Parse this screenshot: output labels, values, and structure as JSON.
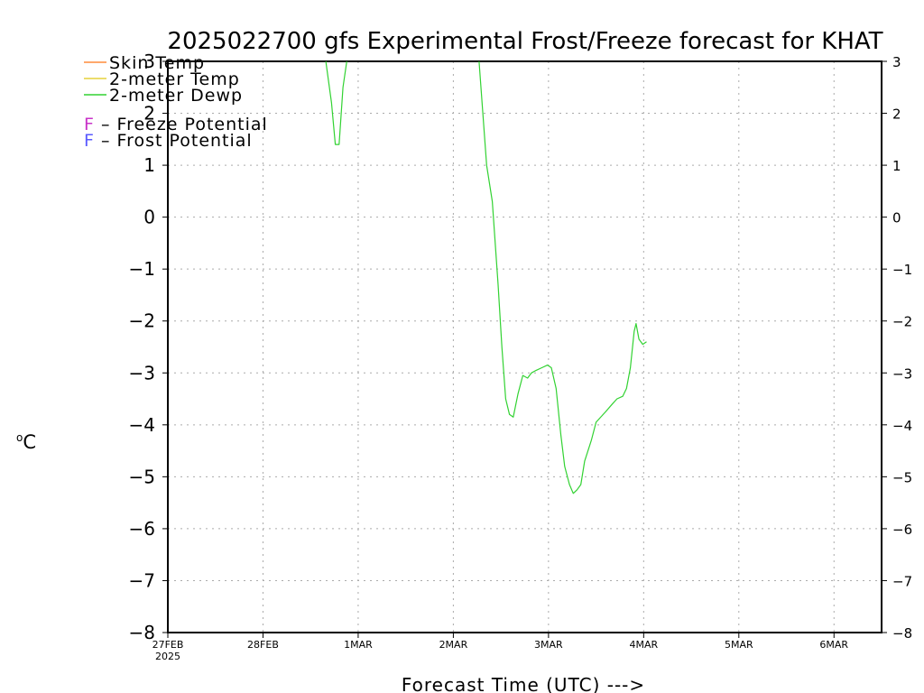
{
  "chart_data": {
    "type": "line",
    "title": "2025022700 gfs Experimental Frost/Freeze forecast for KHAT",
    "ylabel": "oC",
    "ylabel_sup": "o",
    "ylabel_main": "C",
    "xlabel": "Forecast Time (UTC) --->",
    "ylim": [
      -8,
      3
    ],
    "xlim": [
      0,
      7.5
    ],
    "yticks": [
      -8,
      -7,
      -6,
      -5,
      -4,
      -3,
      -2,
      -1,
      0,
      1,
      2,
      3
    ],
    "ytick_labels": [
      "−8",
      "−7",
      "−6",
      "−5",
      "−4",
      "−3",
      "−2",
      "−1",
      "0",
      "1",
      "2",
      "3"
    ],
    "xticks": [
      {
        "pos": 0,
        "label": "27FEB",
        "sub": "2025"
      },
      {
        "pos": 1,
        "label": "28FEB",
        "sub": ""
      },
      {
        "pos": 2,
        "label": "1MAR",
        "sub": ""
      },
      {
        "pos": 3,
        "label": "2MAR",
        "sub": ""
      },
      {
        "pos": 4,
        "label": "3MAR",
        "sub": ""
      },
      {
        "pos": 5,
        "label": "4MAR",
        "sub": ""
      },
      {
        "pos": 6,
        "label": "5MAR",
        "sub": ""
      },
      {
        "pos": 7,
        "label": "6MAR",
        "sub": ""
      }
    ],
    "grid": true,
    "legend": {
      "placement": "top-left",
      "lines": [
        {
          "label": "Skin Temp",
          "color": "#ff8c3c"
        },
        {
          "label": "2-meter Temp",
          "color": "#e6d23c"
        },
        {
          "label": "2-meter Dewp",
          "color": "#32d232"
        }
      ],
      "markers": [
        {
          "symbol": "F",
          "label": " – Freeze Potential",
          "color": "#c832c8"
        },
        {
          "symbol": "F",
          "label": " – Frost Potential",
          "color": "#5a5aff"
        }
      ]
    },
    "series": [
      {
        "name": "2-meter Dewp",
        "color": "#32d232",
        "segments": [
          [
            [
              1.66,
              3.0
            ],
            [
              1.72,
              2.2
            ],
            [
              1.76,
              1.4
            ],
            [
              1.8,
              1.4
            ],
            [
              1.84,
              2.5
            ],
            [
              1.88,
              3.0
            ]
          ],
          [
            [
              3.27,
              3.0
            ],
            [
              3.35,
              1.0
            ],
            [
              3.41,
              0.3
            ],
            [
              3.47,
              -1.3
            ],
            [
              3.51,
              -2.5
            ],
            [
              3.55,
              -3.5
            ],
            [
              3.59,
              -3.8
            ],
            [
              3.63,
              -3.85
            ],
            [
              3.68,
              -3.4
            ],
            [
              3.73,
              -3.05
            ],
            [
              3.78,
              -3.1
            ],
            [
              3.82,
              -3.0
            ],
            [
              3.87,
              -2.95
            ],
            [
              3.93,
              -2.9
            ],
            [
              3.99,
              -2.85
            ],
            [
              4.03,
              -2.9
            ],
            [
              4.08,
              -3.3
            ],
            [
              4.13,
              -4.2
            ],
            [
              4.17,
              -4.8
            ],
            [
              4.22,
              -5.15
            ],
            [
              4.26,
              -5.32
            ],
            [
              4.3,
              -5.25
            ],
            [
              4.34,
              -5.15
            ],
            [
              4.38,
              -4.7
            ],
            [
              4.45,
              -4.3
            ],
            [
              4.5,
              -3.95
            ],
            [
              4.6,
              -3.75
            ],
            [
              4.67,
              -3.6
            ],
            [
              4.72,
              -3.5
            ],
            [
              4.78,
              -3.45
            ],
            [
              4.82,
              -3.3
            ],
            [
              4.86,
              -2.9
            ],
            [
              4.9,
              -2.2
            ],
            [
              4.92,
              -2.05
            ],
            [
              4.95,
              -2.35
            ],
            [
              4.99,
              -2.45
            ],
            [
              5.03,
              -2.4
            ]
          ]
        ]
      }
    ]
  }
}
